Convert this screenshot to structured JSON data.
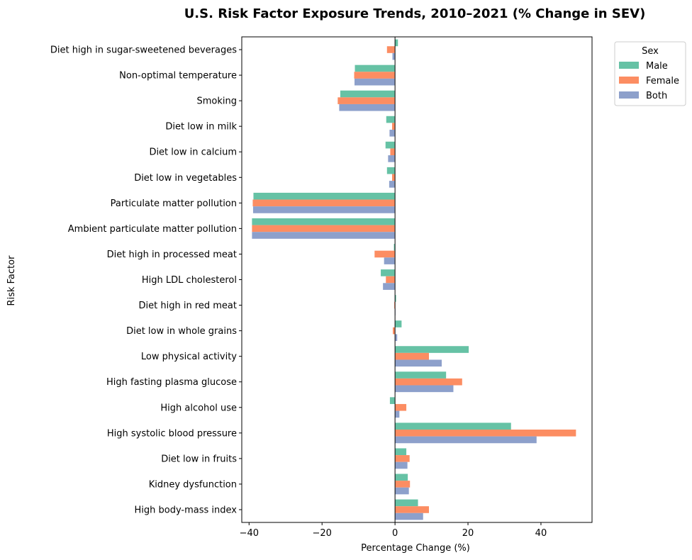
{
  "chart_data": {
    "type": "bar",
    "orientation": "horizontal",
    "title": "U.S. Risk Factor Exposure Trends, 2010–2021 (% Change in SEV)",
    "xlabel": "Percentage Change (%)",
    "ylabel": "Risk Factor",
    "xlim": [
      -42,
      54
    ],
    "xticks": [
      -40,
      -20,
      0,
      20,
      40
    ],
    "xtick_labels": [
      "−40",
      "−20",
      "0",
      "20",
      "40"
    ],
    "grid": false,
    "legend": {
      "title": "Sex",
      "position": "top-right, outside plot"
    },
    "categories": [
      "Diet high in sugar-sweetened beverages",
      "Non-optimal temperature",
      "Smoking",
      "Diet low in milk",
      "Diet low in calcium",
      "Diet low in vegetables",
      "Particulate matter pollution",
      "Ambient particulate matter pollution",
      "Diet high in processed meat",
      "High LDL cholesterol",
      "Diet high in red meat",
      "Diet low in whole grains",
      "Low physical activity",
      "High fasting plasma glucose",
      "High alcohol use",
      "High systolic blood pressure",
      "Diet low in fruits",
      "Kidney dysfunction",
      "High body-mass index"
    ],
    "series": [
      {
        "name": "Male",
        "color": "#66c2a5",
        "values": [
          0.8,
          -11.0,
          -15.0,
          -2.4,
          -2.6,
          -2.2,
          -38.8,
          -39.2,
          -0.3,
          -3.9,
          0.3,
          1.8,
          20.2,
          14.0,
          -1.4,
          31.8,
          3.1,
          3.5,
          6.3
        ]
      },
      {
        "name": "Female",
        "color": "#fc8d62",
        "values": [
          -2.2,
          -11.2,
          -15.7,
          -0.8,
          -1.3,
          -0.8,
          -39.0,
          -39.2,
          -5.6,
          -2.5,
          -0.2,
          -0.6,
          9.3,
          18.4,
          3.1,
          49.6,
          4.0,
          4.1,
          9.3
        ]
      },
      {
        "name": "Both",
        "color": "#8da0cb",
        "values": [
          -0.7,
          -11.1,
          -15.3,
          -1.5,
          -1.9,
          -1.6,
          -38.9,
          -39.2,
          -3.0,
          -3.3,
          0.0,
          0.6,
          12.8,
          16.0,
          1.2,
          38.8,
          3.4,
          3.8,
          7.7
        ]
      }
    ]
  }
}
